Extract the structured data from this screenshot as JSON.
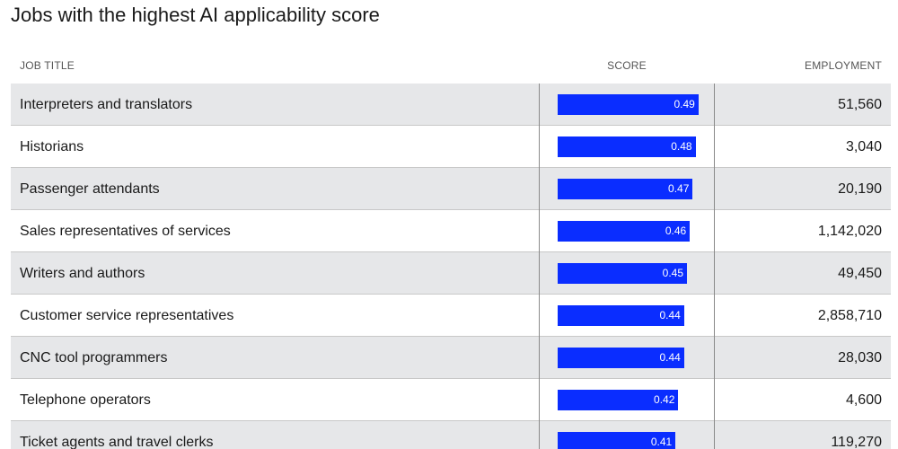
{
  "chart_data": {
    "type": "table",
    "title": "Jobs with the highest AI applicability score",
    "columns": [
      "JOB TITLE",
      "SCORE",
      "EMPLOYMENT"
    ],
    "rows": [
      {
        "job": "Interpreters and translators",
        "score": 0.49,
        "score_label": "0.49",
        "employment": "51,560"
      },
      {
        "job": "Historians",
        "score": 0.48,
        "score_label": "0.48",
        "employment": "3,040"
      },
      {
        "job": "Passenger attendants",
        "score": 0.47,
        "score_label": "0.47",
        "employment": "20,190"
      },
      {
        "job": "Sales representatives of services",
        "score": 0.46,
        "score_label": "0.46",
        "employment": "1,142,020"
      },
      {
        "job": "Writers and authors",
        "score": 0.45,
        "score_label": "0.45",
        "employment": "49,450"
      },
      {
        "job": "Customer service representatives",
        "score": 0.44,
        "score_label": "0.44",
        "employment": "2,858,710"
      },
      {
        "job": "CNC tool programmers",
        "score": 0.44,
        "score_label": "0.44",
        "employment": "28,030"
      },
      {
        "job": "Telephone operators",
        "score": 0.42,
        "score_label": "0.42",
        "employment": "4,600"
      },
      {
        "job": "Ticket agents and travel clerks",
        "score": 0.41,
        "score_label": "0.41",
        "employment": "119,270"
      }
    ],
    "bar_color": "#0a2dff",
    "row_shade_color": "#e6e7e9"
  }
}
